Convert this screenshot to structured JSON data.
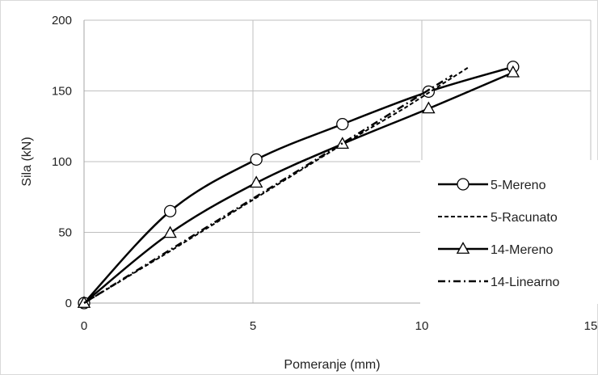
{
  "chart_data": {
    "type": "scatter",
    "title": "",
    "xlabel": "Pomeranje (mm)",
    "ylabel": "Sila (kN)",
    "xlim": [
      0,
      15
    ],
    "ylim": [
      0,
      200
    ],
    "x_ticks": [
      0,
      5,
      10,
      15
    ],
    "y_ticks": [
      0,
      50,
      100,
      150,
      200
    ],
    "x_tick_labels": [
      "0",
      "5",
      "10",
      "15"
    ],
    "y_tick_labels": [
      "0",
      "50",
      "100",
      "150",
      "200"
    ],
    "grid": true,
    "legend_position": "right",
    "series": [
      {
        "name": "5-Mereno",
        "line_style": "solid",
        "marker": "circle",
        "color": "#000000",
        "points": [
          [
            0,
            0
          ],
          [
            2.55,
            65
          ],
          [
            5.1,
            101.5
          ],
          [
            7.65,
            126.5
          ],
          [
            10.2,
            149.5
          ],
          [
            12.7,
            167
          ]
        ]
      },
      {
        "name": "5-Racunato",
        "line_style": "dashed",
        "marker": "none",
        "color": "#000000",
        "points": [
          [
            0,
            0
          ],
          [
            2.5,
            36
          ],
          [
            5.0,
            73
          ],
          [
            7.5,
            110
          ],
          [
            9.5,
            138
          ],
          [
            11.4,
            167
          ]
        ]
      },
      {
        "name": "14-Mereno",
        "line_style": "solid",
        "marker": "triangle",
        "color": "#000000",
        "points": [
          [
            0,
            0
          ],
          [
            2.55,
            49.5
          ],
          [
            5.1,
            85
          ],
          [
            7.65,
            112.5
          ],
          [
            10.2,
            137.5
          ],
          [
            12.7,
            163
          ]
        ]
      },
      {
        "name": "14-Linearno",
        "line_style": "dashdot",
        "marker": "none",
        "color": "#000000",
        "points": [
          [
            0,
            0
          ],
          [
            10.9,
            161
          ]
        ]
      }
    ]
  }
}
